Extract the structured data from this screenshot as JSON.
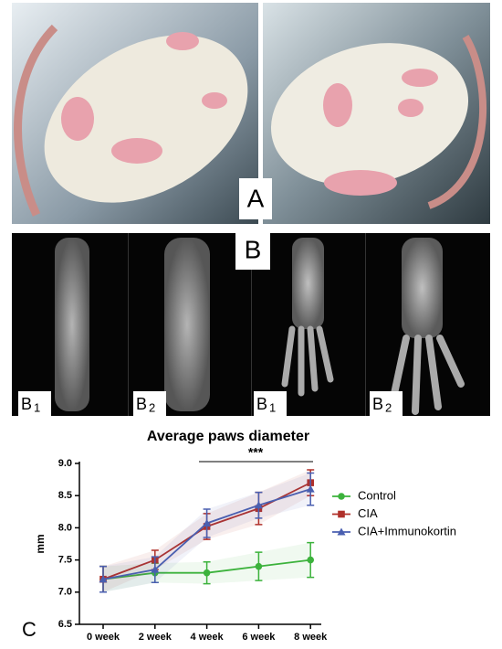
{
  "panels": {
    "a": "A",
    "b": "B",
    "b_sublabels": [
      {
        "letter": "B",
        "sub": "1"
      },
      {
        "letter": "B",
        "sub": "2"
      },
      {
        "letter": "B",
        "sub": "1"
      },
      {
        "letter": "B",
        "sub": "2"
      }
    ],
    "c": "C"
  },
  "chart_data": {
    "type": "line",
    "title": "Average paws diameter",
    "y_label": "mm",
    "annotation": "***",
    "categories": [
      "0 week",
      "2 week",
      "4 week",
      "6 week",
      "8 week"
    ],
    "series": [
      {
        "name": "Control",
        "color": "#3cb23c",
        "marker": "circle",
        "values": [
          7.2,
          7.3,
          7.3,
          7.4,
          7.5
        ],
        "errors": [
          0.2,
          0.15,
          0.17,
          0.22,
          0.27
        ]
      },
      {
        "name": "CIA",
        "color": "#b0302a",
        "marker": "square",
        "values": [
          7.2,
          7.5,
          8.02,
          8.3,
          8.7
        ],
        "errors": [
          0.2,
          0.15,
          0.2,
          0.25,
          0.2
        ]
      },
      {
        "name": "CIA+Immunokortin",
        "color": "#4a5fb0",
        "marker": "triangle",
        "values": [
          7.2,
          7.35,
          8.07,
          8.35,
          8.6
        ],
        "errors": [
          0.2,
          0.2,
          0.22,
          0.2,
          0.25
        ]
      }
    ],
    "ylim": [
      6.5,
      9.0
    ],
    "yticks": [
      {
        "value": 6.5,
        "label": "6.5"
      },
      {
        "value": 7,
        "label": "7.0"
      },
      {
        "value": 7.5,
        "label": "7.5"
      },
      {
        "value": 8,
        "label": "8.0"
      },
      {
        "value": 8.5,
        "label": "8.5"
      },
      {
        "value": 9,
        "label": "9.0"
      }
    ]
  }
}
